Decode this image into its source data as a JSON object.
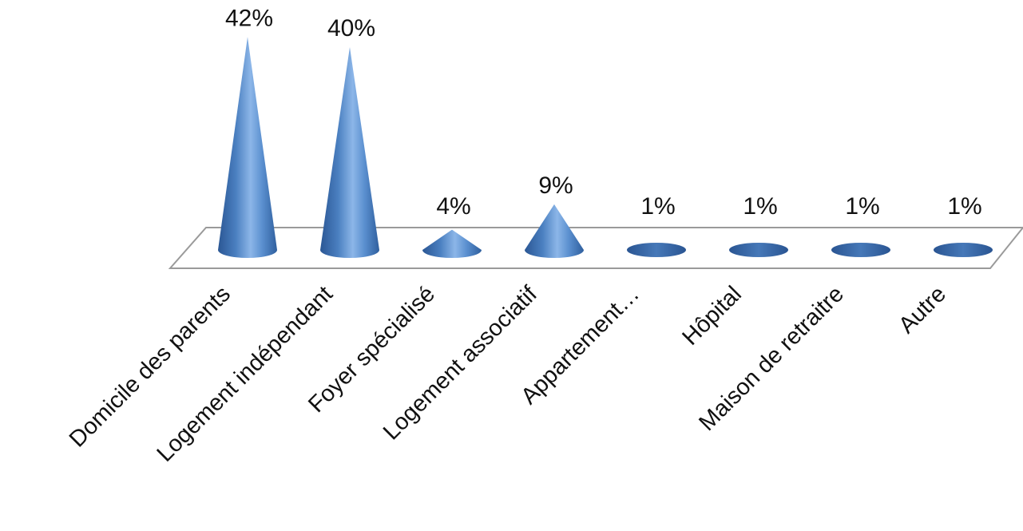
{
  "chart_data": {
    "type": "bar",
    "bar_shape": "cone",
    "view": "3d",
    "categories": [
      "Domicile des parents",
      "Logement indépendant",
      "Foyer spécialisé",
      "Logement associatif",
      "Appartement…",
      "Hôpital",
      "Maison de retraitre",
      "Autre"
    ],
    "values": [
      42,
      40,
      4,
      9,
      1,
      1,
      1,
      1
    ],
    "data_labels": [
      "42%",
      "40%",
      "4%",
      "9%",
      "1%",
      "1%",
      "1%",
      "1%"
    ],
    "unit": "%",
    "title": "",
    "xlabel": "",
    "ylabel": "",
    "legend": "none",
    "grid": false,
    "colors": {
      "cone_dark": "#2f5f9e",
      "cone_mid": "#4f86c6",
      "cone_light": "#8fb9ea",
      "floor_stroke": "#9a9a9a"
    }
  }
}
